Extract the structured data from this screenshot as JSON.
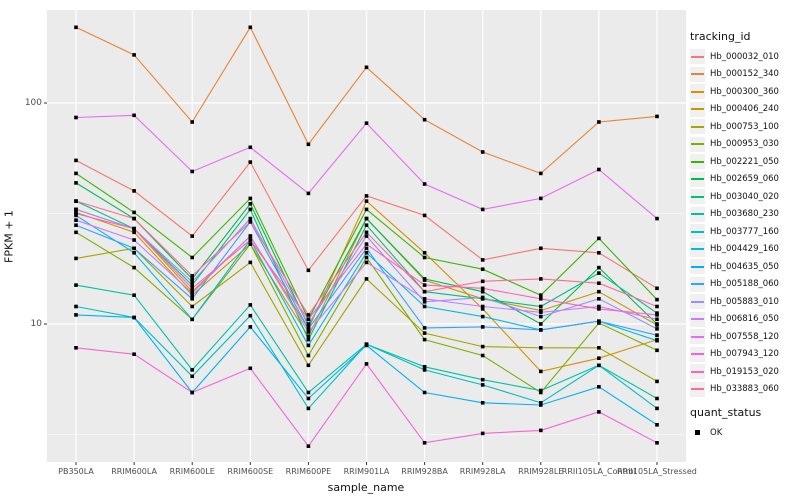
{
  "chart_data": {
    "type": "line",
    "title": "",
    "xlabel": "sample_name",
    "ylabel": "FPKM + 1",
    "y_scale": "log10",
    "ylim": [
      2.4,
      263
    ],
    "grid": "on",
    "legend_position": "right",
    "panel_bg": "#EBEBEB",
    "grid_color": "#FFFFFF",
    "marker_color": "#000000",
    "marker_shape": "square",
    "y_ticks": [
      {
        "value": 100,
        "label": "100"
      },
      {
        "value": 10,
        "label": "10"
      }
    ],
    "y_minor_gridlines": [
      31.62,
      3.162
    ],
    "categories": [
      "PB350LA",
      "RRIM600LA",
      "RRIM600LE",
      "RRIM600SE",
      "RRIM600PE",
      "RRIM901LA",
      "RRIM928BA",
      "RRIM928LA",
      "RRIM928LE",
      "RRII105LA_Control",
      "RRII105LA_Stressed"
    ],
    "series": [
      {
        "name": "Hb_000032_010",
        "color": "#F8766D",
        "values": [
          55,
          40,
          25,
          54,
          17.5,
          38,
          31,
          19.5,
          22,
          21,
          14.5
        ]
      },
      {
        "name": "Hb_000152_340",
        "color": "#EA8331",
        "values": [
          220,
          165,
          82,
          220,
          65,
          145,
          84,
          60,
          48,
          82,
          87
        ]
      },
      {
        "name": "Hb_000300_360",
        "color": "#D89000",
        "values": [
          33,
          27,
          14,
          25,
          9.5,
          36,
          21,
          11.7,
          6.1,
          7.0,
          8.5
        ]
      },
      {
        "name": "Hb_000406_240",
        "color": "#C09B00",
        "values": [
          32,
          26,
          13.5,
          23,
          8.8,
          30,
          15.8,
          13,
          11.5,
          14,
          9.9
        ]
      },
      {
        "name": "Hb_000753_100",
        "color": "#A3A500",
        "values": [
          19.8,
          22,
          12,
          19,
          6.5,
          16,
          9.1,
          7.9,
          7.8,
          7.8,
          5.5
        ]
      },
      {
        "name": "Hb_000953_030",
        "color": "#7CAE00",
        "values": [
          26,
          18,
          10.5,
          23,
          7.2,
          20,
          8.5,
          7.2,
          4.9,
          10.1,
          7.6
        ]
      },
      {
        "name": "Hb_002221_050",
        "color": "#39B600",
        "values": [
          48,
          32,
          20,
          37,
          10.5,
          33,
          20,
          17.7,
          13.5,
          24.4,
          12.9
        ]
      },
      {
        "name": "Hb_002659_060",
        "color": "#00BB4E",
        "values": [
          43.5,
          30,
          16,
          35,
          9.8,
          30,
          16,
          14,
          10,
          18,
          10
        ]
      },
      {
        "name": "Hb_003040_020",
        "color": "#00BF7D",
        "values": [
          36,
          27,
          15,
          33,
          8.5,
          28,
          14,
          13,
          12,
          17,
          11.2
        ]
      },
      {
        "name": "Hb_003680_230",
        "color": "#00C1A3",
        "values": [
          15,
          13.5,
          6.2,
          12.2,
          4.9,
          8.1,
          6.4,
          5.6,
          5.0,
          6.5,
          4.6
        ]
      },
      {
        "name": "Hb_003777_160",
        "color": "#00BFC4",
        "values": [
          12,
          10.7,
          5.8,
          10.9,
          4.15,
          8.1,
          6.2,
          5.3,
          4.4,
          6.5,
          4.15
        ]
      },
      {
        "name": "Hb_004429_160",
        "color": "#00BAE0",
        "values": [
          31,
          21,
          10.5,
          24,
          8.0,
          21,
          12,
          10.8,
          9.4,
          10.3,
          8.4
        ]
      },
      {
        "name": "Hb_004635_050",
        "color": "#00B0F6",
        "values": [
          11,
          10.7,
          4.9,
          9.7,
          4.6,
          8.0,
          4.9,
          4.4,
          4.3,
          5.2,
          3.5
        ]
      },
      {
        "name": "Hb_005188_060",
        "color": "#35A2FF",
        "values": [
          28,
          22,
          13,
          29,
          9.5,
          22,
          9.6,
          9.7,
          9.4,
          10.3,
          8.9
        ]
      },
      {
        "name": "Hb_005883_010",
        "color": "#9590FF",
        "values": [
          33,
          27,
          15.5,
          30,
          10,
          25,
          12.6,
          13.2,
          10.8,
          13,
          9.5
        ]
      },
      {
        "name": "Hb_006816_050",
        "color": "#C77CFF",
        "values": [
          29.5,
          24,
          13.8,
          25,
          9.2,
          19,
          13,
          12,
          11.3,
          12,
          10.5
        ]
      },
      {
        "name": "Hb_007558_120",
        "color": "#E76BF3",
        "values": [
          86,
          88,
          49,
          63,
          39,
          81,
          43,
          33,
          37,
          50,
          30
        ]
      },
      {
        "name": "Hb_007943_120",
        "color": "#FA62DB",
        "values": [
          7.8,
          7.3,
          4.9,
          6.3,
          2.8,
          6.6,
          2.9,
          3.2,
          3.3,
          4.0,
          2.9
        ]
      },
      {
        "name": "Hb_019153_020",
        "color": "#FF62BC",
        "values": [
          31.6,
          27,
          14.5,
          24,
          10.5,
          23,
          15,
          14.5,
          13,
          11.7,
          11
        ]
      },
      {
        "name": "Hb_033883_060",
        "color": "#FF6A98",
        "values": [
          36,
          30,
          16.5,
          29,
          11,
          26,
          14,
          15.6,
          16,
          15.3,
          12
        ]
      }
    ],
    "legend": {
      "title": "tracking_id",
      "quant_title": "quant_status",
      "quant_items": [
        {
          "label": "OK",
          "marker": "black-square"
        }
      ]
    }
  }
}
